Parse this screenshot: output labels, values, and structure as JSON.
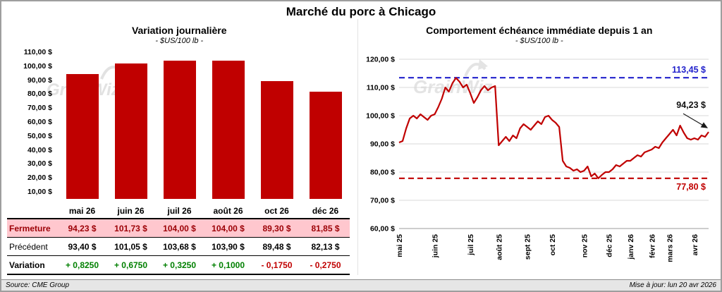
{
  "window": {
    "title": "Marché du porc à Chicago"
  },
  "watermark": "GrainWiz",
  "footer": {
    "source": "Source: CME Group",
    "updated": "Mise à jour: lun 20 avr 2026"
  },
  "left_panel": {
    "title": "Variation journalière",
    "subtitle": "- $US/100 lb -"
  },
  "right_panel": {
    "title": "Comportement échéance immédiate depuis 1 an",
    "subtitle": "- $US/100 lb -"
  },
  "left_table": {
    "row_labels": [
      "Fermeture",
      "Précédent",
      "Variation"
    ],
    "columns": [
      "mai 26",
      "juin 26",
      "juil 26",
      "août 26",
      "oct 26",
      "déc 26"
    ],
    "fermeture": [
      "94,23 $",
      "101,73 $",
      "104,00 $",
      "104,00 $",
      "89,30 $",
      "81,85 $"
    ],
    "precedent": [
      "93,40 $",
      "101,05 $",
      "103,68 $",
      "103,90 $",
      "89,48 $",
      "82,13 $"
    ],
    "variation": [
      "+ 0,8250",
      "+ 0,6750",
      "+ 0,3250",
      "+ 0,1000",
      "- 0,1750",
      "- 0,2750"
    ]
  },
  "chart_data": [
    {
      "type": "bar",
      "title": "Variation journalière",
      "subtitle": "- $US/100 lb -",
      "categories": [
        "mai 26",
        "juin 26",
        "juil 26",
        "août 26",
        "oct 26",
        "déc 26"
      ],
      "values": [
        94.23,
        101.73,
        104.0,
        104.0,
        89.3,
        81.85
      ],
      "bar_color": "#C00000",
      "ylim": [
        5,
        110
      ],
      "yticks": [
        10,
        20,
        30,
        40,
        50,
        60,
        70,
        80,
        90,
        100,
        110
      ],
      "ytick_labels": [
        "10,00 $",
        "20,00 $",
        "30,00 $",
        "40,00 $",
        "50,00 $",
        "60,00 $",
        "70,00 $",
        "80,00 $",
        "90,00 $",
        "100,00 $",
        "110,00 $"
      ],
      "grid": false,
      "legend": false
    },
    {
      "type": "line",
      "title": "Comportement échéance immédiate depuis 1 an",
      "subtitle": "- $US/100 lb -",
      "line_color": "#C00000",
      "ylim": [
        60,
        120
      ],
      "yticks": [
        60,
        70,
        80,
        90,
        100,
        110,
        120
      ],
      "ytick_labels": [
        "60,00 $",
        "70,00 $",
        "80,00 $",
        "90,00 $",
        "100,00 $",
        "110,00 $",
        "120,00 $"
      ],
      "x_labels": [
        "mai 25",
        "juin 25",
        "juil 25",
        "août 25",
        "sept 25",
        "oct 25",
        "nov 25",
        "déc 25",
        "janv 26",
        "févr 26",
        "mars 26",
        "avr 26"
      ],
      "x_label_indices": [
        0,
        10,
        20,
        28,
        36,
        43,
        52,
        59,
        65,
        71,
        76,
        83
      ],
      "values": [
        90.5,
        91,
        95.5,
        99,
        100,
        99,
        100.5,
        99.5,
        98.5,
        100,
        100.5,
        103,
        106,
        110,
        108.5,
        111.5,
        113.4,
        112,
        110,
        111,
        108,
        104.5,
        106.5,
        109,
        110.5,
        109,
        110,
        110.5,
        89.5,
        91,
        92.5,
        91,
        93,
        92,
        95.5,
        97,
        96,
        95,
        96.5,
        98,
        97,
        99.5,
        100,
        98.5,
        97.5,
        96,
        84,
        82,
        81.5,
        80.5,
        81,
        80,
        80.5,
        82,
        78.5,
        79.5,
        77.8,
        79,
        80,
        80,
        81,
        82.5,
        82,
        83,
        84,
        84,
        85,
        86,
        85.5,
        87,
        87.5,
        88,
        89,
        88.5,
        90.5,
        92,
        93.5,
        95,
        93,
        96.5,
        94,
        92,
        91.5,
        92,
        91.5,
        93,
        92.5,
        94.23
      ],
      "ref_lines": [
        {
          "value": 113.45,
          "label": "113,45 $",
          "color": "#2222CC",
          "style": "dashed",
          "label_position": "above"
        },
        {
          "value": 77.8,
          "label": "77,80 $",
          "color": "#C00000",
          "style": "dashed",
          "label_position": "below"
        }
      ],
      "annotation": {
        "label": "94,23 $",
        "value": 94.23
      },
      "grid": true,
      "legend": false
    }
  ]
}
